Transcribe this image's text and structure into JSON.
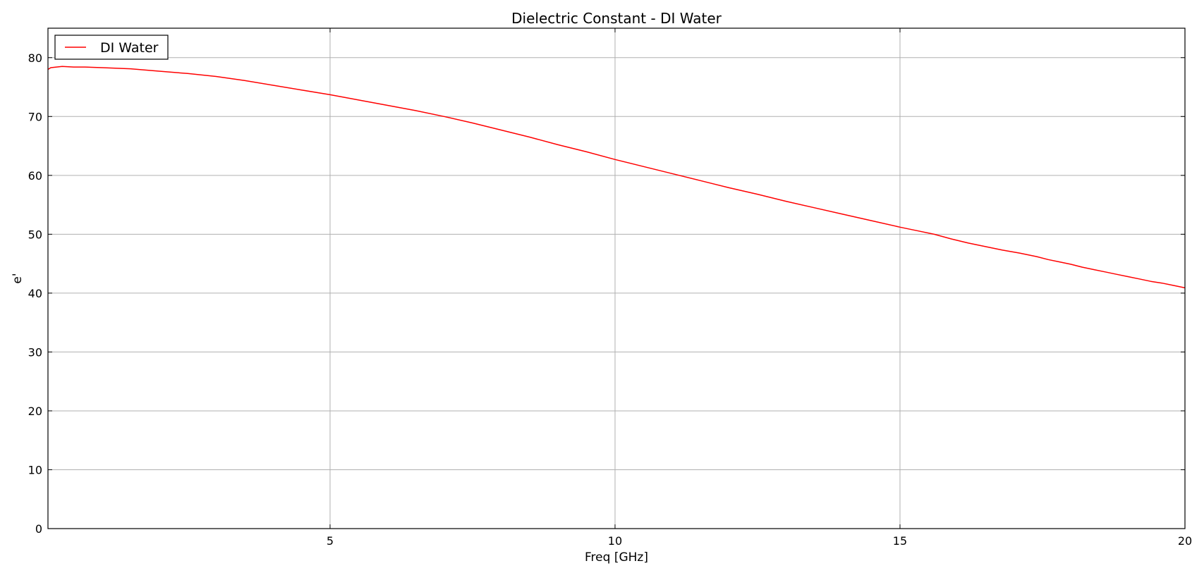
{
  "chart_data": {
    "type": "line",
    "title": "Dielectric Constant - DI Water",
    "xlabel": "Freq [GHz]",
    "ylabel": "e'",
    "xlim": [
      0.05,
      20
    ],
    "ylim": [
      0,
      85
    ],
    "xticks": [
      5,
      10,
      15,
      20
    ],
    "yticks": [
      0,
      10,
      20,
      30,
      40,
      50,
      60,
      70,
      80
    ],
    "grid": true,
    "legend_position": "top-left",
    "series": [
      {
        "name": "DI Water",
        "color": "#ff0000",
        "x": [
          0.05,
          0.1,
          0.2,
          0.3,
          0.5,
          0.7,
          1.0,
          1.5,
          2.0,
          2.5,
          3.0,
          3.5,
          4.0,
          4.5,
          5.0,
          5.5,
          6.0,
          6.5,
          7.0,
          7.5,
          8.0,
          8.5,
          9.0,
          9.5,
          10.0,
          10.5,
          11.0,
          11.5,
          12.0,
          12.5,
          13.0,
          13.5,
          14.0,
          14.5,
          15.0,
          15.3,
          15.6,
          15.9,
          16.2,
          16.5,
          16.8,
          17.1,
          17.4,
          17.6,
          17.8,
          18.0,
          18.2,
          18.4,
          18.6,
          18.8,
          19.0,
          19.2,
          19.4,
          19.6,
          19.8,
          20.0
        ],
        "y": [
          78.0,
          78.3,
          78.4,
          78.5,
          78.4,
          78.4,
          78.3,
          78.1,
          77.7,
          77.3,
          76.8,
          76.1,
          75.3,
          74.5,
          73.7,
          72.8,
          71.9,
          71.0,
          70.0,
          68.9,
          67.7,
          66.5,
          65.2,
          64.0,
          62.7,
          61.5,
          60.3,
          59.1,
          57.9,
          56.8,
          55.6,
          54.5,
          53.4,
          52.3,
          51.2,
          50.6,
          50.0,
          49.2,
          48.5,
          47.9,
          47.3,
          46.8,
          46.2,
          45.7,
          45.3,
          44.9,
          44.4,
          44.0,
          43.6,
          43.2,
          42.8,
          42.4,
          42.0,
          41.7,
          41.3,
          40.9
        ]
      }
    ]
  }
}
